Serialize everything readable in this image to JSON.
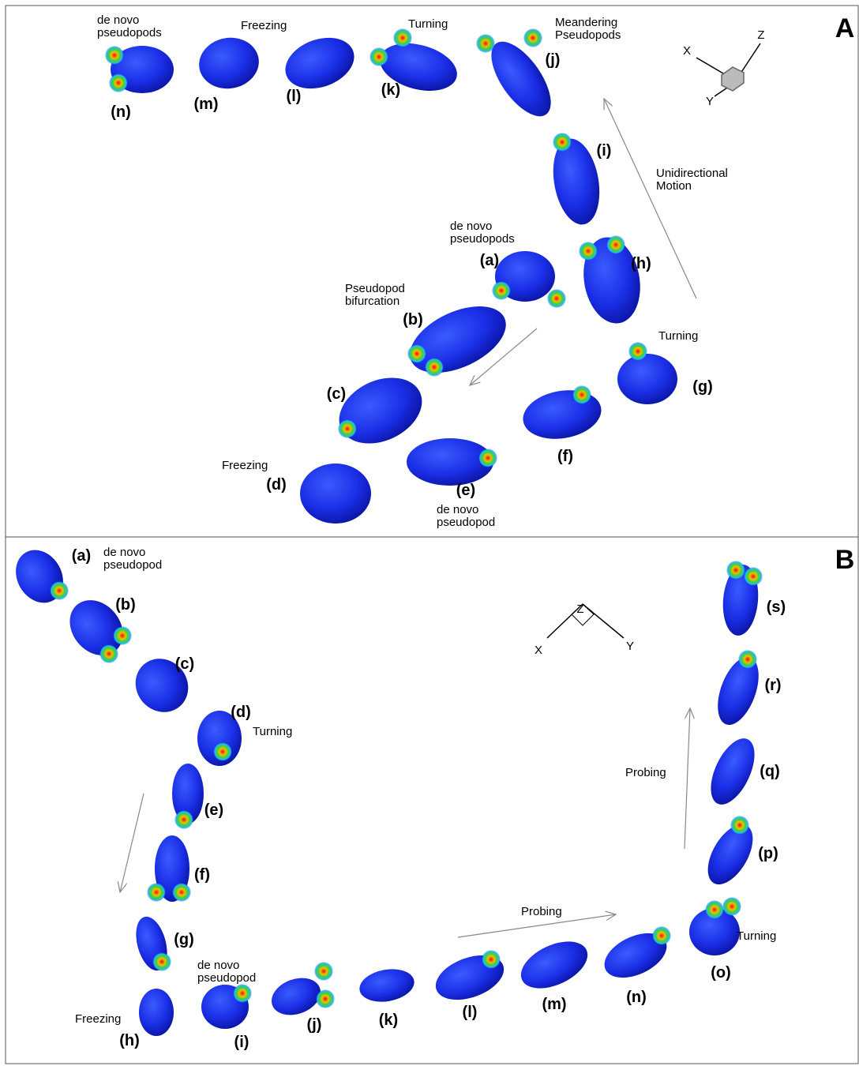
{
  "panels": [
    {
      "label": "A",
      "axes": {
        "x": "X",
        "y": "Y",
        "z": "Z"
      },
      "stages": [
        "(a)",
        "(b)",
        "(c)",
        "(d)",
        "(e)",
        "(f)",
        "(g)",
        "(h)",
        "(i)",
        "(j)",
        "(k)",
        "(l)",
        "(m)",
        "(n)"
      ],
      "annotations": [
        {
          "lines": [
            "de novo",
            "pseudopods"
          ]
        },
        {
          "lines": [
            "Freezing"
          ]
        },
        {
          "lines": [
            "Turning"
          ]
        },
        {
          "lines": [
            "Meandering",
            "Pseudopods"
          ]
        },
        {
          "lines": [
            "Unidirectional",
            "Motion"
          ]
        },
        {
          "lines": [
            "de novo",
            "pseudopods"
          ]
        },
        {
          "lines": [
            "Pseudopod",
            "bifurcation"
          ]
        },
        {
          "lines": [
            "Turning"
          ]
        },
        {
          "lines": [
            "Freezing"
          ]
        },
        {
          "lines": [
            "de novo",
            "pseudopod"
          ]
        }
      ]
    },
    {
      "label": "B",
      "axes": {
        "x": "X",
        "y": "Y",
        "z": "Z"
      },
      "stages": [
        "(a)",
        "(b)",
        "(c)",
        "(d)",
        "(e)",
        "(f)",
        "(g)",
        "(h)",
        "(i)",
        "(j)",
        "(k)",
        "(l)",
        "(m)",
        "(n)",
        "(o)",
        "(p)",
        "(q)",
        "(r)",
        "(s)"
      ],
      "annotations": [
        {
          "lines": [
            "de novo",
            "pseudopod"
          ]
        },
        {
          "lines": [
            "Turning"
          ]
        },
        {
          "lines": [
            "de novo",
            "pseudopod"
          ]
        },
        {
          "lines": [
            "Freezing"
          ]
        },
        {
          "lines": [
            "Probing"
          ]
        },
        {
          "lines": [
            "Turning"
          ]
        },
        {
          "lines": [
            "Probing"
          ]
        }
      ]
    }
  ]
}
